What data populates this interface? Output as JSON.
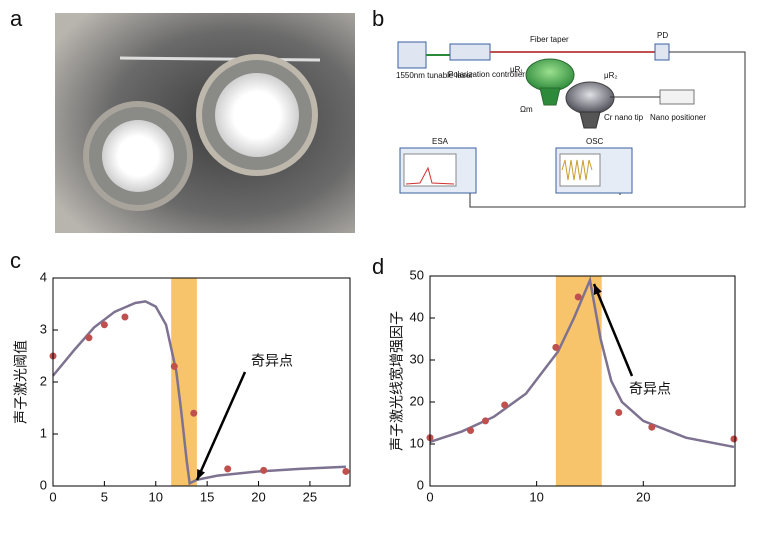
{
  "panels": {
    "a": "a",
    "b": "b",
    "c": "c",
    "d": "d"
  },
  "diagram": {
    "laser": "1550nm tunable laser",
    "polarization": "Polarization controller",
    "fiber": "Fiber taper",
    "pd": "PD",
    "mu_r1": "μR₁",
    "mu_r2": "μR₂",
    "omega": "Ωm",
    "tip": "Cr nano tip",
    "positioner": "Nano positioner",
    "esa": "ESA",
    "osc": "OSC"
  },
  "chart_data": [
    {
      "type": "line",
      "ylabel": "声子激光阈值",
      "annotation": "奇异点",
      "xlim": [
        0,
        28.9
      ],
      "ylim": [
        0,
        4
      ],
      "xticks": [
        0,
        5,
        10,
        15,
        20,
        25
      ],
      "yticks": [
        0,
        1,
        2,
        3,
        4
      ],
      "highlight": [
        11.5,
        14
      ],
      "highlight_color": "#f7c46c",
      "series": [
        {
          "style": "line",
          "color": "#7d7290",
          "x": [
            0,
            2,
            4,
            6,
            8,
            9,
            10,
            11,
            12,
            12.5,
            13,
            13.3,
            14,
            16,
            20,
            24,
            28.5
          ],
          "values": [
            2.12,
            2.6,
            3.05,
            3.35,
            3.52,
            3.55,
            3.45,
            3.1,
            2.2,
            1.4,
            0.5,
            0.05,
            0.12,
            0.2,
            0.28,
            0.33,
            0.37
          ]
        },
        {
          "style": "markers",
          "color": "#c0504d",
          "x": [
            0,
            3.5,
            5,
            7,
            11.8,
            13.7,
            17,
            20.5,
            28.5
          ],
          "values": [
            2.5,
            2.85,
            3.1,
            3.25,
            2.3,
            1.4,
            0.33,
            0.3,
            0.28
          ]
        }
      ]
    },
    {
      "type": "line",
      "ylabel": "声子激光线宽增强因子",
      "annotation": "奇异点",
      "xlim": [
        0,
        28.6
      ],
      "ylim": [
        0,
        50
      ],
      "xticks": [
        0,
        10,
        20
      ],
      "yticks": [
        0,
        10,
        20,
        30,
        40,
        50
      ],
      "highlight": [
        11.8,
        16.1
      ],
      "highlight_color": "#f7c46c",
      "series": [
        {
          "style": "line",
          "color": "#7d7290",
          "x": [
            0,
            3,
            6,
            9,
            12,
            13.5,
            15,
            16,
            17,
            18,
            20,
            24,
            28.5
          ],
          "values": [
            10.5,
            13,
            16.5,
            22,
            32,
            40,
            49,
            35,
            25,
            20,
            15.5,
            11.5,
            9.3
          ]
        },
        {
          "style": "markers",
          "color": "#c0504d",
          "x": [
            0,
            3.8,
            5.2,
            7,
            11.8,
            13.9,
            17.7,
            20.8,
            28.5
          ],
          "values": [
            11.5,
            13.2,
            15.5,
            19.3,
            33,
            45,
            17.5,
            14,
            11.2
          ]
        }
      ]
    }
  ]
}
